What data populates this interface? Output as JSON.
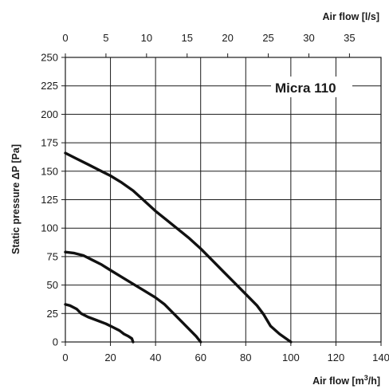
{
  "chart_data": {
    "type": "line",
    "annotation": "Micra 110",
    "ylabel": "Static pressure ΔP [Pa]",
    "xlabel_bottom": {
      "text": "Air flow [m",
      "sup": "3",
      "suffix": "/h]"
    },
    "xlabel_top": "Air flow [l/s]",
    "xlim": [
      0,
      140
    ],
    "ylim": [
      0,
      250
    ],
    "x_ticks": [
      "0",
      "20",
      "40",
      "60",
      "80",
      "100",
      "120",
      "140"
    ],
    "y_ticks": [
      "0",
      "25",
      "50",
      "75",
      "100",
      "125",
      "150",
      "175",
      "200",
      "225",
      "250"
    ],
    "x_top_ticks": [
      "0",
      "5",
      "10",
      "15",
      "20",
      "25",
      "30",
      "35"
    ],
    "x_top_values": [
      0,
      5,
      10,
      15,
      20,
      25,
      30,
      35
    ],
    "grid": true,
    "series": [
      {
        "x": [
          0,
          5,
          10,
          15,
          20,
          25,
          30,
          35,
          40,
          45,
          50,
          55,
          60,
          65,
          70,
          75,
          80,
          85,
          88,
          91,
          95,
          100
        ],
        "y": [
          166,
          161,
          156,
          151,
          146,
          140,
          133,
          124,
          115,
          107,
          99,
          91,
          82,
          72,
          62,
          52,
          42,
          32,
          24,
          14,
          7,
          0
        ]
      },
      {
        "x": [
          0,
          4,
          8,
          12,
          16,
          20,
          25,
          30,
          35,
          40,
          44,
          48,
          52,
          55,
          58,
          60
        ],
        "y": [
          79,
          78,
          76,
          72,
          68,
          63,
          57,
          51,
          45,
          39,
          33,
          25,
          17,
          11,
          5,
          0
        ]
      },
      {
        "x": [
          0,
          2,
          5,
          7,
          10,
          14,
          18,
          21,
          24,
          26,
          28,
          29.5,
          30
        ],
        "y": [
          33,
          32,
          29,
          25,
          22,
          19,
          16,
          13,
          10,
          7,
          5,
          3,
          0
        ]
      }
    ]
  }
}
